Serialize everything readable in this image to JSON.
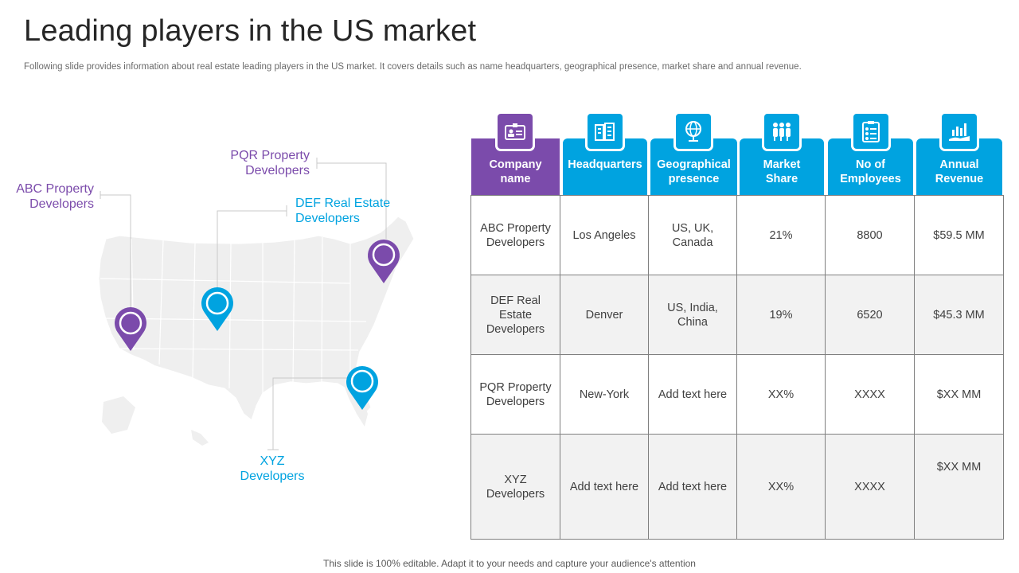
{
  "title": "Leading players in the US market",
  "subtitle": "Following slide provides information about real estate leading players in the US market. It covers details such as name headquarters, geographical presence, market share and annual revenue.",
  "footer": "This slide is 100% editable. Adapt it to your needs and capture your audience's attention",
  "colors": {
    "purple": "#7b4bab",
    "blue": "#00a3e0",
    "map": "#efefef"
  },
  "map": {
    "labels": {
      "abc": [
        "ABC Property",
        "Developers"
      ],
      "pqr": [
        "PQR Property",
        "Developers"
      ],
      "def": [
        "DEF Real Estate",
        "Developers"
      ],
      "xyz": [
        "XYZ",
        "Developers"
      ]
    }
  },
  "table": {
    "headers": [
      {
        "lines": [
          "Company",
          "name"
        ],
        "icon": "id-card-icon"
      },
      {
        "lines": [
          "Headquarters"
        ],
        "icon": "buildings-icon"
      },
      {
        "lines": [
          "Geographical",
          "presence"
        ],
        "icon": "globe-icon"
      },
      {
        "lines": [
          "Market",
          "Share"
        ],
        "icon": "people-group-icon"
      },
      {
        "lines": [
          "No of",
          "Employees"
        ],
        "icon": "employee-list-icon"
      },
      {
        "lines": [
          "Annual",
          "Revenue"
        ],
        "icon": "revenue-chart-icon"
      }
    ],
    "rows": [
      [
        [
          "ABC Property",
          "Developers"
        ],
        [
          "Los Angeles"
        ],
        [
          "US, UK,",
          "Canada"
        ],
        [
          "21%"
        ],
        [
          "8800"
        ],
        [
          "$59.5 MM"
        ]
      ],
      [
        [
          "DEF Real",
          "Estate",
          "Developers"
        ],
        [
          "Denver"
        ],
        [
          "US, India,",
          "China"
        ],
        [
          "19%"
        ],
        [
          "6520"
        ],
        [
          "$45.3 MM"
        ]
      ],
      [
        [
          "PQR Property",
          "Developers"
        ],
        [
          "New-York"
        ],
        [
          "Add text here"
        ],
        [
          "XX%"
        ],
        [
          "XXXX"
        ],
        [
          "$XX MM"
        ]
      ],
      [
        [
          "XYZ",
          "Developers"
        ],
        [
          "Add text here"
        ],
        [
          "Add text here"
        ],
        [
          "XX%"
        ],
        [
          "XXXX"
        ],
        [
          "$XX MM"
        ]
      ]
    ]
  }
}
